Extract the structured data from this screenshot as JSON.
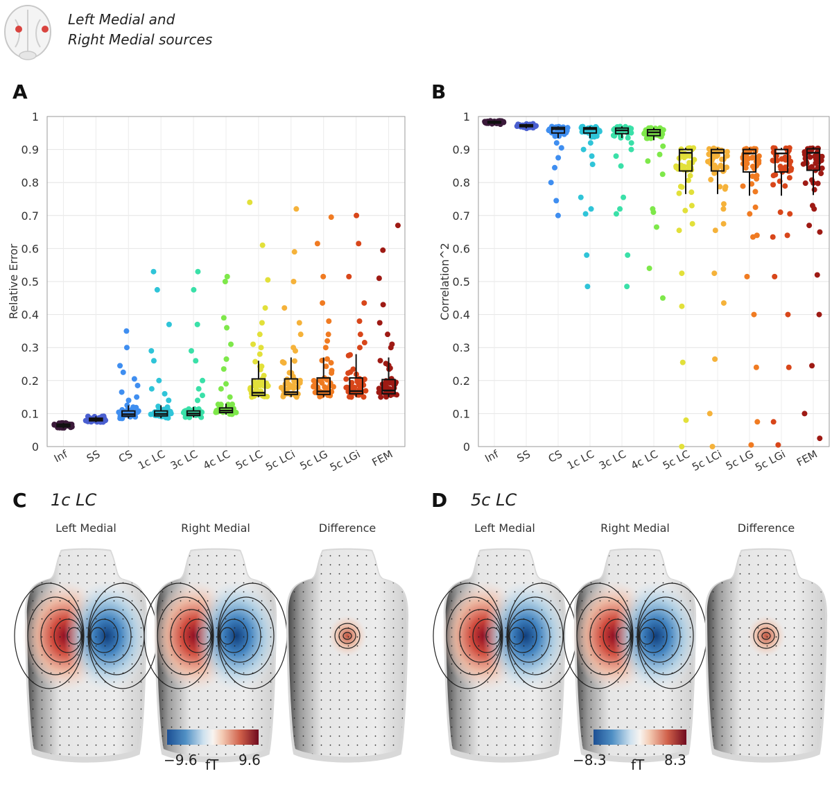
{
  "header": {
    "title_line1": "Left Medial and",
    "title_line2": "Right Medial sources"
  },
  "panels": {
    "a": {
      "letter": "A"
    },
    "b": {
      "letter": "B"
    },
    "c": {
      "letter": "C",
      "model": "1c LC",
      "maps": [
        "Left Medial",
        "Right Medial",
        "Difference"
      ],
      "colorbar": {
        "min": "−9.6",
        "max": "9.6",
        "unit": "fT"
      }
    },
    "d": {
      "letter": "D",
      "model": "5c LC",
      "maps": [
        "Left Medial",
        "Right Medial",
        "Difference"
      ],
      "colorbar": {
        "min": "−8.3",
        "max": "8.3",
        "unit": "fT"
      }
    }
  },
  "chart_data": [
    {
      "type": "box",
      "panel": "A",
      "ylabel": "Relative Error",
      "xlabel": "",
      "ylim": [
        0,
        1
      ],
      "yticks": [
        "0",
        "0.1",
        "0.2",
        "0.3",
        "0.4",
        "0.5",
        "0.6",
        "0.7",
        "0.8",
        "0.9",
        "1"
      ],
      "grid": true,
      "categories": [
        "Inf",
        "SS",
        "CS",
        "1c LC",
        "3c LC",
        "4c LC",
        "5c LC",
        "5c LCi",
        "5c LG",
        "5c LGi",
        "FEM"
      ],
      "colors": [
        "#3b1a3a",
        "#4a5fd0",
        "#3f8ef0",
        "#2fc4d8",
        "#3ae0a8",
        "#7ee84a",
        "#e2e03a",
        "#f5b23a",
        "#f07b22",
        "#d8461a",
        "#9e1a14"
      ],
      "boxes": [
        {
          "q1": 0.06,
          "median": 0.064,
          "q3": 0.068,
          "whislo": 0.055,
          "whishi": 0.072
        },
        {
          "q1": 0.078,
          "median": 0.082,
          "q3": 0.086,
          "whislo": 0.074,
          "whishi": 0.092
        },
        {
          "q1": 0.092,
          "median": 0.098,
          "q3": 0.108,
          "whislo": 0.085,
          "whishi": 0.125
        },
        {
          "q1": 0.093,
          "median": 0.099,
          "q3": 0.108,
          "whislo": 0.086,
          "whishi": 0.125
        },
        {
          "q1": 0.094,
          "median": 0.1,
          "q3": 0.108,
          "whislo": 0.088,
          "whishi": 0.12
        },
        {
          "q1": 0.103,
          "median": 0.109,
          "q3": 0.117,
          "whislo": 0.097,
          "whishi": 0.13
        },
        {
          "q1": 0.155,
          "median": 0.163,
          "q3": 0.205,
          "whislo": 0.15,
          "whishi": 0.26
        },
        {
          "q1": 0.158,
          "median": 0.165,
          "q3": 0.205,
          "whislo": 0.15,
          "whishi": 0.27
        },
        {
          "q1": 0.158,
          "median": 0.167,
          "q3": 0.208,
          "whislo": 0.15,
          "whishi": 0.27
        },
        {
          "q1": 0.16,
          "median": 0.168,
          "q3": 0.208,
          "whislo": 0.15,
          "whishi": 0.28
        },
        {
          "q1": 0.16,
          "median": 0.17,
          "q3": 0.203,
          "whislo": 0.15,
          "whishi": 0.27
        }
      ],
      "outliers": [
        [],
        [],
        [
          0.35,
          0.3,
          0.245,
          0.225,
          0.205,
          0.185,
          0.165,
          0.15,
          0.14
        ],
        [
          0.53,
          0.475,
          0.37,
          0.29,
          0.26,
          0.2,
          0.175,
          0.16,
          0.14
        ],
        [
          0.53,
          0.475,
          0.37,
          0.29,
          0.26,
          0.2,
          0.175,
          0.155,
          0.14
        ],
        [
          0.515,
          0.5,
          0.39,
          0.36,
          0.31,
          0.265,
          0.235,
          0.19,
          0.175,
          0.15
        ],
        [
          0.74,
          0.61,
          0.505,
          0.42,
          0.375,
          0.34,
          0.31,
          0.3,
          0.28
        ],
        [
          0.72,
          0.59,
          0.5,
          0.42,
          0.375,
          0.34,
          0.3,
          0.29
        ],
        [
          0.695,
          0.615,
          0.515,
          0.435,
          0.38,
          0.34,
          0.32,
          0.3
        ],
        [
          0.7,
          0.615,
          0.515,
          0.435,
          0.38,
          0.34,
          0.315,
          0.3
        ],
        [
          0.67,
          0.595,
          0.51,
          0.43,
          0.375,
          0.34,
          0.31,
          0.3
        ]
      ]
    },
    {
      "type": "box",
      "panel": "B",
      "ylabel": "Correlation^2",
      "xlabel": "",
      "ylim": [
        0,
        1
      ],
      "yticks": [
        "0",
        "0.1",
        "0.2",
        "0.3",
        "0.4",
        "0.5",
        "0.6",
        "0.7",
        "0.8",
        "0.9",
        "1"
      ],
      "grid": true,
      "categories": [
        "Inf",
        "SS",
        "CS",
        "1c LC",
        "3c LC",
        "4c LC",
        "5c LC",
        "5c LCi",
        "5c LG",
        "5c LGi",
        "FEM"
      ],
      "colors": [
        "#3b1a3a",
        "#4a5fd0",
        "#3f8ef0",
        "#2fc4d8",
        "#3ae0a8",
        "#7ee84a",
        "#e2e03a",
        "#f5b23a",
        "#f07b22",
        "#d8461a",
        "#9e1a14"
      ],
      "boxes": [
        {
          "q1": 0.98,
          "median": 0.982,
          "q3": 0.985,
          "whislo": 0.976,
          "whishi": 0.988
        },
        {
          "q1": 0.969,
          "median": 0.972,
          "q3": 0.975,
          "whislo": 0.964,
          "whishi": 0.978
        },
        {
          "q1": 0.95,
          "median": 0.962,
          "q3": 0.967,
          "whislo": 0.935,
          "whishi": 0.97
        },
        {
          "q1": 0.95,
          "median": 0.962,
          "q3": 0.966,
          "whislo": 0.935,
          "whishi": 0.97
        },
        {
          "q1": 0.948,
          "median": 0.958,
          "q3": 0.965,
          "whislo": 0.935,
          "whishi": 0.97
        },
        {
          "q1": 0.942,
          "median": 0.952,
          "q3": 0.96,
          "whislo": 0.928,
          "whishi": 0.966
        },
        {
          "q1": 0.835,
          "median": 0.89,
          "q3": 0.9,
          "whislo": 0.765,
          "whishi": 0.905
        },
        {
          "q1": 0.835,
          "median": 0.89,
          "q3": 0.9,
          "whislo": 0.765,
          "whishi": 0.905
        },
        {
          "q1": 0.832,
          "median": 0.888,
          "q3": 0.9,
          "whislo": 0.76,
          "whishi": 0.905
        },
        {
          "q1": 0.832,
          "median": 0.888,
          "q3": 0.9,
          "whislo": 0.76,
          "whishi": 0.905
        },
        {
          "q1": 0.837,
          "median": 0.89,
          "q3": 0.902,
          "whislo": 0.762,
          "whishi": 0.907
        }
      ],
      "outliers": [
        [],
        [],
        [
          0.92,
          0.905,
          0.875,
          0.845,
          0.8,
          0.745,
          0.7
        ],
        [
          0.92,
          0.9,
          0.88,
          0.855,
          0.755,
          0.72,
          0.705,
          0.58,
          0.485
        ],
        [
          0.92,
          0.9,
          0.88,
          0.85,
          0.755,
          0.72,
          0.705,
          0.58,
          0.485
        ],
        [
          0.91,
          0.885,
          0.865,
          0.825,
          0.72,
          0.71,
          0.665,
          0.54,
          0.45
        ],
        [
          0.73,
          0.715,
          0.675,
          0.655,
          0.525,
          0.425,
          0.255,
          0.08,
          0.0
        ],
        [
          0.735,
          0.72,
          0.675,
          0.655,
          0.525,
          0.435,
          0.265,
          0.1,
          0.0
        ],
        [
          0.725,
          0.705,
          0.64,
          0.635,
          0.515,
          0.4,
          0.24,
          0.075,
          0.005
        ],
        [
          0.71,
          0.705,
          0.64,
          0.635,
          0.515,
          0.4,
          0.24,
          0.075,
          0.005
        ],
        [
          0.73,
          0.72,
          0.67,
          0.65,
          0.52,
          0.4,
          0.245,
          0.1,
          0.025
        ]
      ]
    }
  ]
}
